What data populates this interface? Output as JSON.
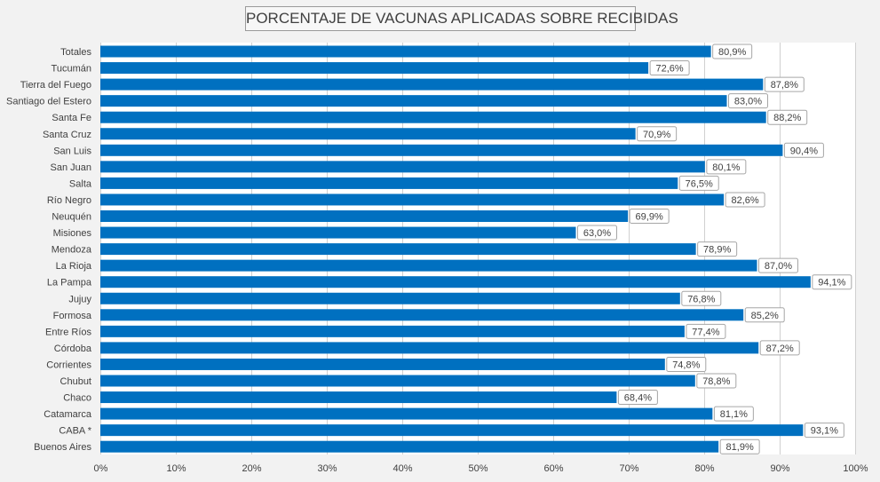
{
  "chart_data": {
    "type": "bar",
    "orientation": "horizontal",
    "title": "PORCENTAJE DE VACUNAS APLICADAS SOBRE RECIBIDAS",
    "xlabel": "",
    "ylabel": "",
    "xlim": [
      0,
      100
    ],
    "ticks": [
      "0%",
      "10%",
      "20%",
      "30%",
      "40%",
      "50%",
      "60%",
      "70%",
      "80%",
      "90%",
      "100%"
    ],
    "grid": true,
    "legend": "none",
    "bar_color": "#0070c0",
    "categories": [
      "Totales",
      "Tucumán",
      "Tierra del Fuego",
      "Santiago del Estero",
      "Santa Fe",
      "Santa Cruz",
      "San Luis",
      "San Juan",
      "Salta",
      "Río Negro",
      "Neuquén",
      "Misiones",
      "Mendoza",
      "La Rioja",
      "La Pampa",
      "Jujuy",
      "Formosa",
      "Entre Ríos",
      "Córdoba",
      "Corrientes",
      "Chubut",
      "Chaco",
      "Catamarca",
      "CABA *",
      "Buenos Aires"
    ],
    "values": [
      80.9,
      72.6,
      87.8,
      83.0,
      88.2,
      70.9,
      90.4,
      80.1,
      76.5,
      82.6,
      69.9,
      63.0,
      78.9,
      87.0,
      94.1,
      76.8,
      85.2,
      77.4,
      87.2,
      74.8,
      78.8,
      68.4,
      81.1,
      93.1,
      81.9
    ],
    "labels": [
      "80,9%",
      "72,6%",
      "87,8%",
      "83,0%",
      "88,2%",
      "70,9%",
      "90,4%",
      "80,1%",
      "76,5%",
      "82,6%",
      "69,9%",
      "63,0%",
      "78,9%",
      "87,0%",
      "94,1%",
      "76,8%",
      "85,2%",
      "77,4%",
      "87,2%",
      "74,8%",
      "78,8%",
      "68,4%",
      "81,1%",
      "93,1%",
      "81,9%"
    ]
  }
}
